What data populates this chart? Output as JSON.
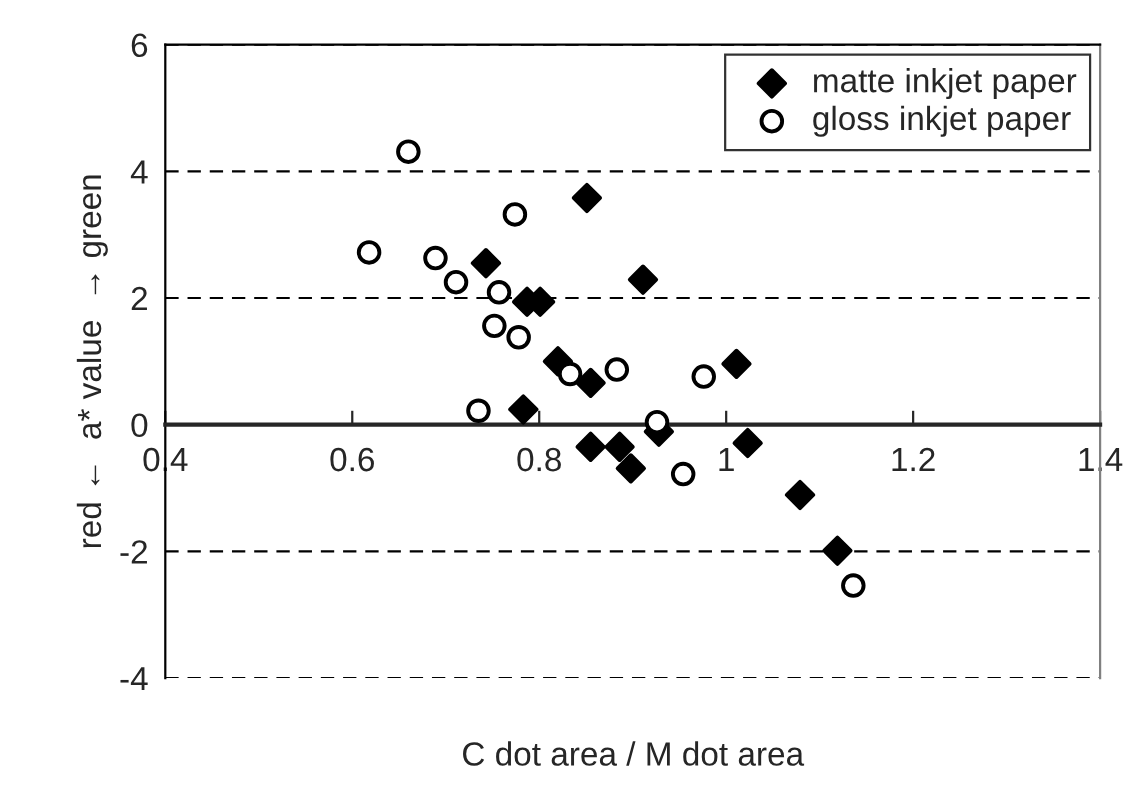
{
  "chart_data": {
    "type": "scatter",
    "xlabel": "C dot area / M dot area",
    "ylabel": "red ←  a* value  → green",
    "xlim": [
      0.4,
      1.4
    ],
    "xticks": [
      0.4,
      0.6,
      0.8,
      1,
      1.2,
      1.4
    ],
    "ylim": [
      -4,
      6
    ],
    "yticks": [
      -4,
      -2,
      0,
      2,
      4,
      6
    ],
    "grid": "y",
    "legend": "top right",
    "series": [
      {
        "name": "matte inkjet paper",
        "color": "#000000",
        "marker": "diamond",
        "x": [
          0.743,
          0.787,
          0.801,
          0.783,
          0.82,
          0.855,
          0.851,
          0.911,
          1.011,
          0.855,
          0.886,
          0.898,
          0.928,
          1.023,
          1.079,
          1.119
        ],
        "values": [
          2.55,
          1.94,
          1.94,
          0.24,
          1.0,
          0.66,
          3.58,
          2.29,
          0.96,
          -0.35,
          -0.35,
          -0.69,
          -0.11,
          -0.29,
          -1.11,
          -1.99
        ]
      },
      {
        "name": "gloss inkjet paper",
        "color": "#ffffff",
        "marker": "circle",
        "x": [
          0.66,
          0.618,
          0.689,
          0.711,
          0.757,
          0.774,
          0.752,
          0.778,
          0.735,
          0.833,
          0.883,
          0.976,
          0.926,
          0.954,
          1.136
        ],
        "values": [
          4.31,
          2.72,
          2.63,
          2.25,
          2.09,
          3.32,
          1.56,
          1.38,
          0.22,
          0.8,
          0.87,
          0.76,
          0.04,
          -0.78,
          -2.54
        ]
      }
    ]
  }
}
